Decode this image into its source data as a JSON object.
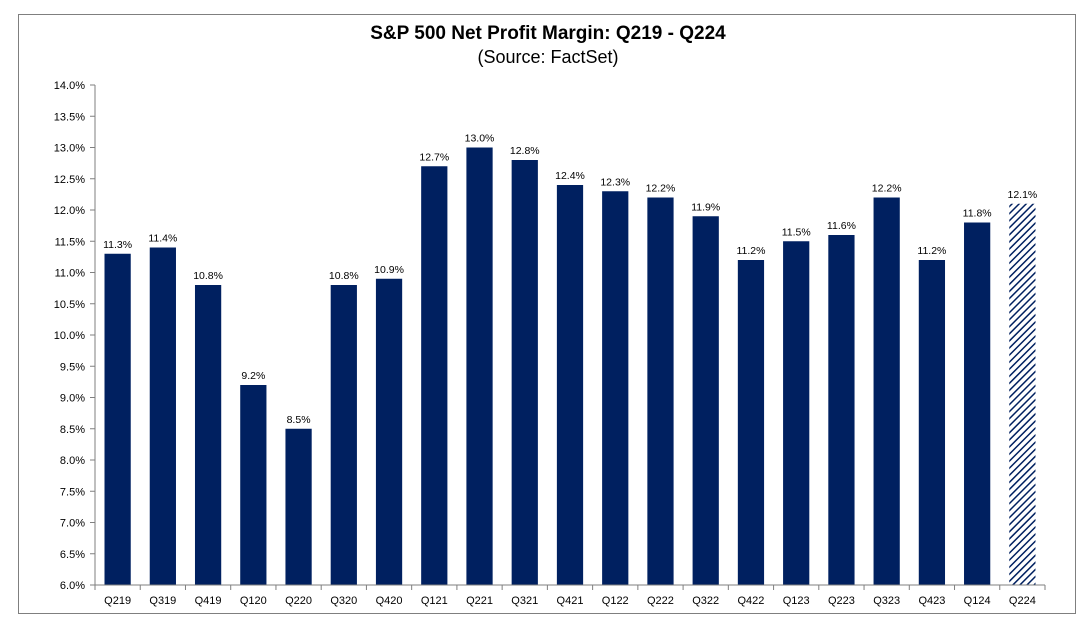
{
  "chart_data": {
    "type": "bar",
    "title": "S&P 500 Net Profit Margin: Q219 - Q224",
    "subtitle": "(Source: FactSet)",
    "xlabel": "",
    "ylabel": "",
    "ylim": [
      6.0,
      14.0
    ],
    "ytick_step": 0.5,
    "ytick_suffix": "%",
    "grid": false,
    "categories": [
      "Q219",
      "Q319",
      "Q419",
      "Q120",
      "Q220",
      "Q320",
      "Q420",
      "Q121",
      "Q221",
      "Q321",
      "Q421",
      "Q122",
      "Q222",
      "Q322",
      "Q422",
      "Q123",
      "Q223",
      "Q323",
      "Q423",
      "Q124",
      "Q224"
    ],
    "values": [
      11.3,
      11.4,
      10.8,
      9.2,
      8.5,
      10.8,
      10.9,
      12.7,
      13.0,
      12.8,
      12.4,
      12.3,
      12.2,
      11.9,
      11.2,
      11.5,
      11.6,
      12.2,
      11.2,
      11.8,
      12.1
    ],
    "data_labels": [
      "11.3%",
      "11.4%",
      "10.8%",
      "9.2%",
      "8.5%",
      "10.8%",
      "10.9%",
      "12.7%",
      "13.0%",
      "12.8%",
      "12.4%",
      "12.3%",
      "12.2%",
      "11.9%",
      "11.2%",
      "11.5%",
      "11.6%",
      "12.2%",
      "11.2%",
      "11.8%",
      "12.1%"
    ],
    "estimated": [
      false,
      false,
      false,
      false,
      false,
      false,
      false,
      false,
      false,
      false,
      false,
      false,
      false,
      false,
      false,
      false,
      false,
      false,
      false,
      false,
      true
    ],
    "colors": {
      "bar": "#002060",
      "estimate_hatch": "#002060",
      "axis": "#7f7f7f"
    }
  }
}
